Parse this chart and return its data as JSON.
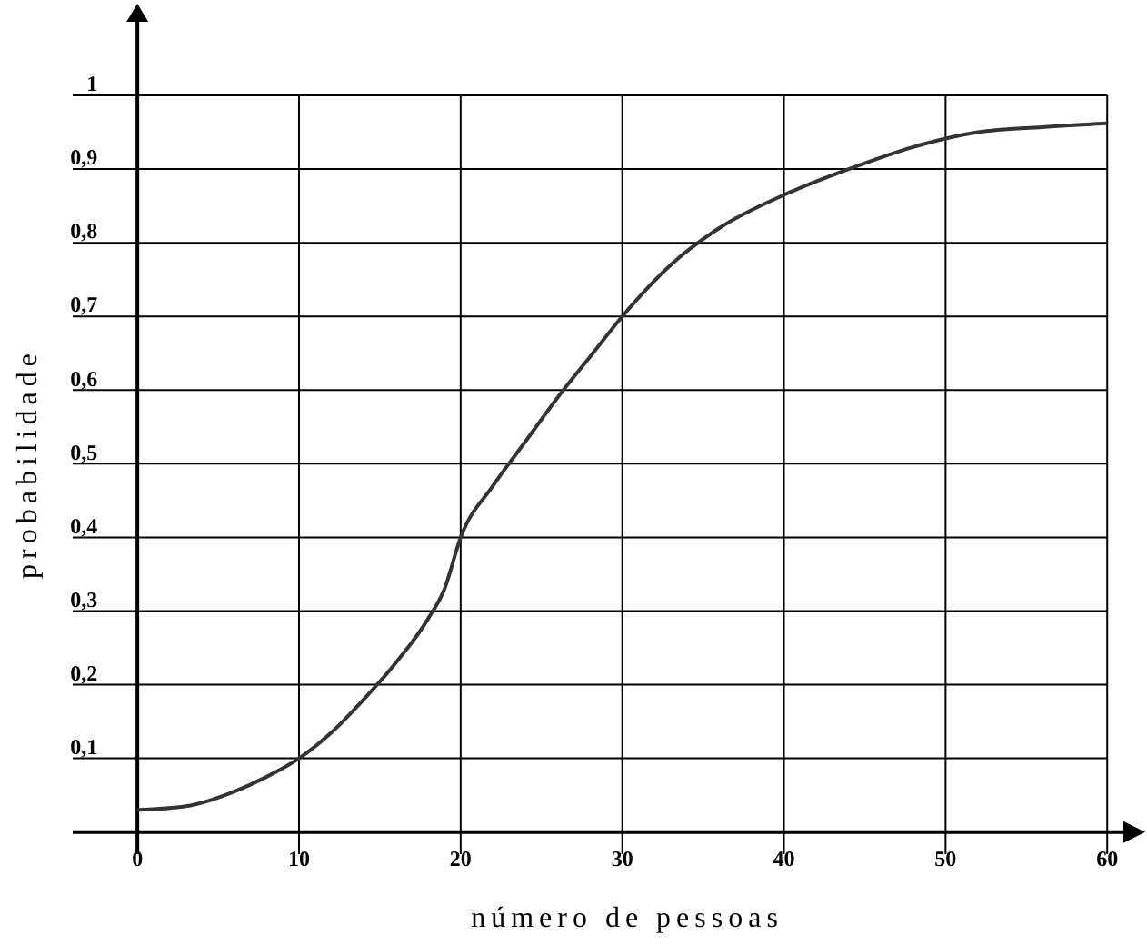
{
  "chart_data": {
    "type": "line",
    "xlabel": "número de pessoas",
    "ylabel": "probabilidade",
    "x": [
      0,
      3,
      6,
      8,
      10,
      12,
      14,
      16,
      18,
      19,
      20,
      22,
      24,
      26,
      28,
      30,
      33,
      36,
      40,
      44,
      48,
      52,
      56,
      60
    ],
    "series": [
      {
        "color": "#333333",
        "values": [
          0.03,
          0.035,
          0.055,
          0.075,
          0.1,
          0.135,
          0.18,
          0.23,
          0.29,
          0.33,
          0.4,
          0.47,
          0.53,
          0.59,
          0.645,
          0.7,
          0.77,
          0.82,
          0.865,
          0.9,
          0.93,
          0.95,
          0.957,
          0.962
        ]
      }
    ],
    "xlim": [
      -4,
      61
    ],
    "ylim": [
      -0.03,
      1.1
    ],
    "xticks": [
      0,
      10,
      20,
      30,
      40,
      50,
      60
    ],
    "yticks": [
      {
        "value": 0.1,
        "label": "0,1"
      },
      {
        "value": 0.2,
        "label": "0,2"
      },
      {
        "value": 0.3,
        "label": "0,3"
      },
      {
        "value": 0.4,
        "label": "0,4"
      },
      {
        "value": 0.5,
        "label": "0,5"
      },
      {
        "value": 0.6,
        "label": "0,6"
      },
      {
        "value": 0.7,
        "label": "0,7"
      },
      {
        "value": 0.8,
        "label": "0,8"
      },
      {
        "value": 0.9,
        "label": "0,9"
      },
      {
        "value": 1,
        "label": "1"
      }
    ],
    "grid": true,
    "marker": "none",
    "line_style": "solid"
  }
}
